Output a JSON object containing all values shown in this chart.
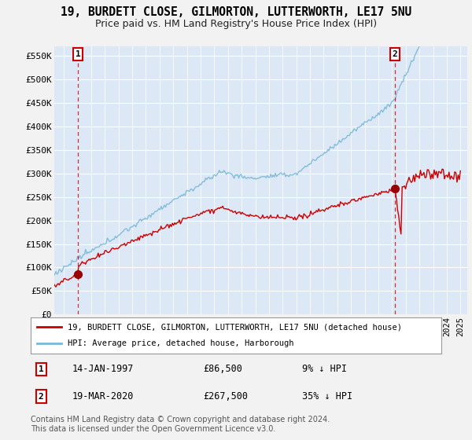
{
  "title": "19, BURDETT CLOSE, GILMORTON, LUTTERWORTH, LE17 5NU",
  "subtitle": "Price paid vs. HM Land Registry's House Price Index (HPI)",
  "ylabel_ticks": [
    "£0",
    "£50K",
    "£100K",
    "£150K",
    "£200K",
    "£250K",
    "£300K",
    "£350K",
    "£400K",
    "£450K",
    "£500K",
    "£550K"
  ],
  "ytick_values": [
    0,
    50000,
    100000,
    150000,
    200000,
    250000,
    300000,
    350000,
    400000,
    450000,
    500000,
    550000
  ],
  "xlim": [
    1995.3,
    2025.5
  ],
  "ylim": [
    0,
    570000
  ],
  "sale1_x": 1997.04,
  "sale1_y": 86500,
  "sale1_label": "1",
  "sale2_x": 2020.21,
  "sale2_y": 267500,
  "sale2_label": "2",
  "legend_line1": "19, BURDETT CLOSE, GILMORTON, LUTTERWORTH, LE17 5NU (detached house)",
  "legend_line2": "HPI: Average price, detached house, Harborough",
  "annotation1_date": "14-JAN-1997",
  "annotation1_price": "£86,500",
  "annotation1_hpi": "9% ↓ HPI",
  "annotation2_date": "19-MAR-2020",
  "annotation2_price": "£267,500",
  "annotation2_hpi": "35% ↓ HPI",
  "footer": "Contains HM Land Registry data © Crown copyright and database right 2024.\nThis data is licensed under the Open Government Licence v3.0.",
  "red_line_color": "#cc0000",
  "blue_line_color": "#7ab8d9",
  "dot_color": "#990000",
  "vline_color": "#cc0000",
  "background_color": "#dce8f5",
  "grid_color": "#ffffff",
  "fig_bg_color": "#f2f2f2",
  "plot_bg_color": "#dce8f5"
}
